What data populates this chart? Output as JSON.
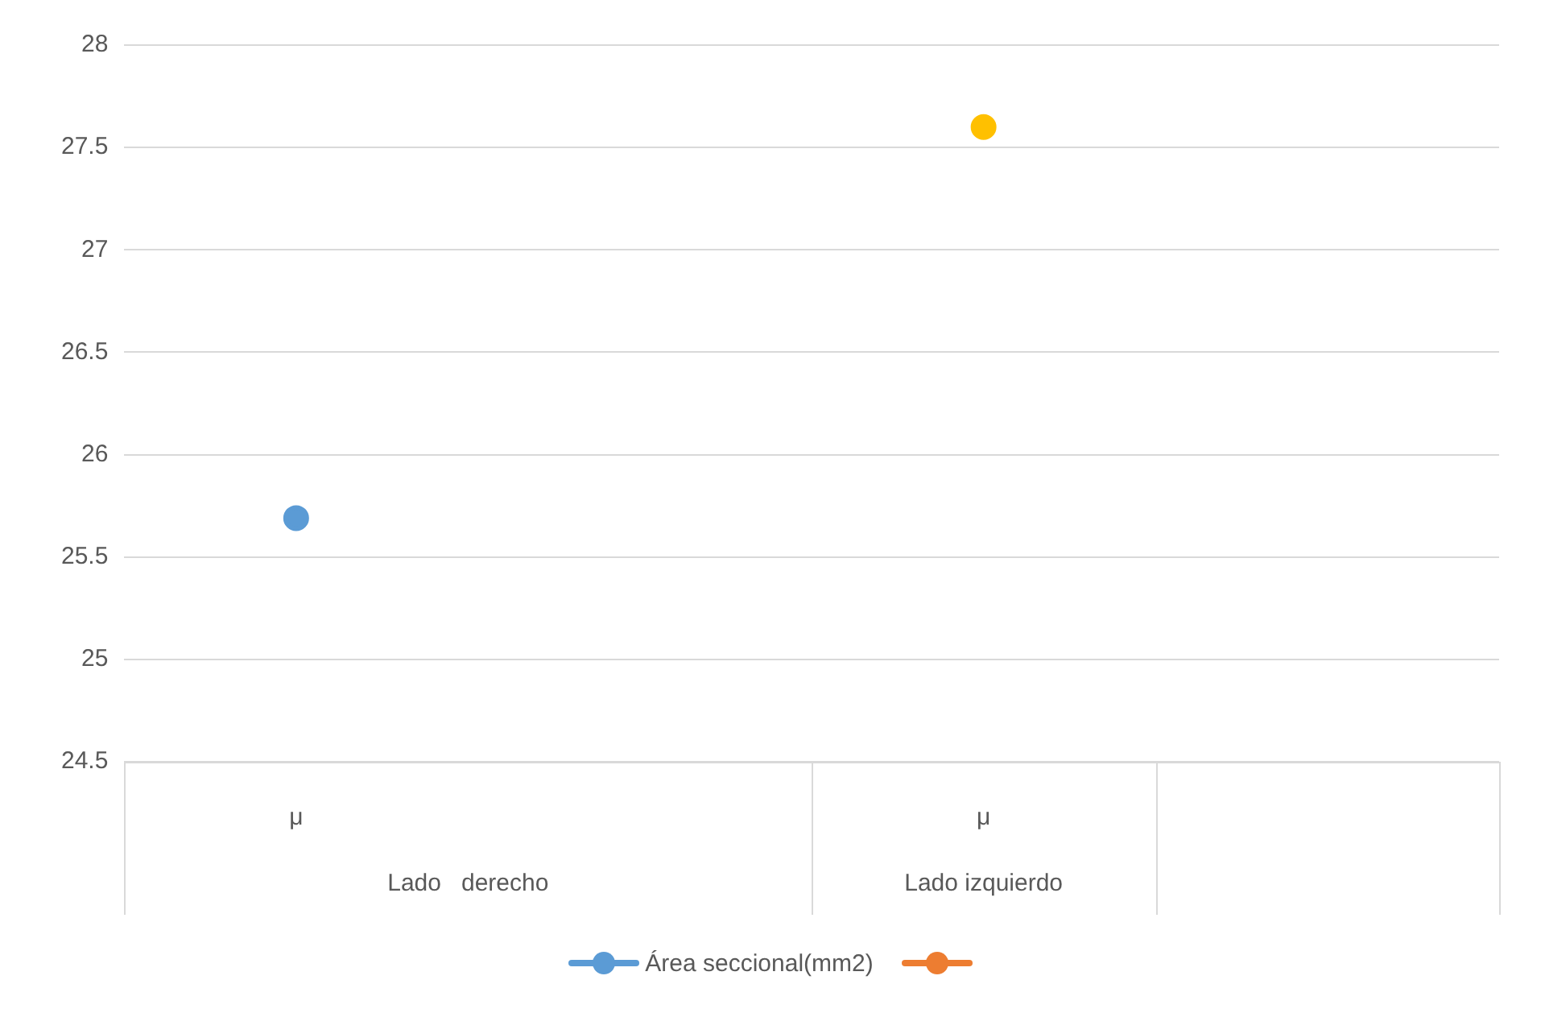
{
  "chart_data": {
    "type": "scatter",
    "categories": [
      "μ",
      null,
      "μ",
      null
    ],
    "series": [
      {
        "name": "Área seccional(mm2)",
        "color": "#5b9bd5",
        "values": [
          25.69,
          null,
          null,
          null
        ]
      },
      {
        "color": "#ed7d31",
        "colors": [
          null,
          null,
          "#ffc000",
          null
        ],
        "values": [
          null,
          null,
          27.6,
          null
        ]
      }
    ],
    "ylim": [
      24.5,
      28
    ],
    "yticks": [
      24.5,
      25,
      25.5,
      26,
      26.5,
      27,
      27.5,
      28
    ],
    "grid": "y",
    "legend": "bottom",
    "marker": "circle",
    "annotations": [
      "Lado   derecho",
      "Lado izquierdo"
    ]
  }
}
